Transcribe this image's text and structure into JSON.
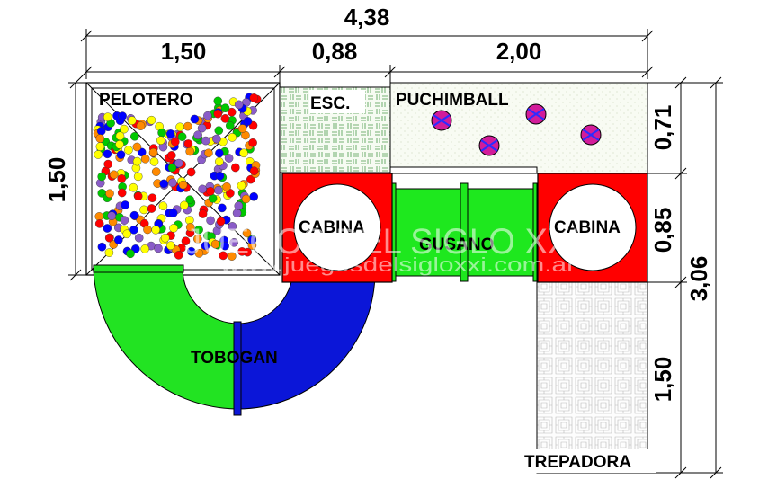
{
  "dimensions": {
    "total_width": "4,38",
    "pelotero_width": "1,50",
    "esc_width": "0,88",
    "puchimball_width": "2,00",
    "left_height": "1,50",
    "puchimball_height": "0,71",
    "cabina_height": "0,85",
    "trepadora_height": "1,50",
    "total_height": "3,06"
  },
  "labels": {
    "pelotero": "PELOTERO",
    "esc": "ESC.",
    "puchimball": "PUCHIMBALL",
    "cabina_left": "CABINA",
    "cabina_right": "CABINA",
    "gusano": "GUSANO",
    "tobogan": "TOBOGAN",
    "trepadora": "TREPADORA"
  },
  "watermark": {
    "title": "JUEGOS DEL SIGLO XXI",
    "url": "www.juegosdelsigloxxi.com.ar"
  },
  "colors": {
    "cabina": "#ff0000",
    "gusano": "#1ee81e",
    "tobogan_green": "#22e322",
    "tobogan_blue": "#0b16d8",
    "ball_palette": [
      "#ff0000",
      "#0000ff",
      "#00c800",
      "#ffff00",
      "#8a5cc8",
      "#ff8a00"
    ]
  }
}
